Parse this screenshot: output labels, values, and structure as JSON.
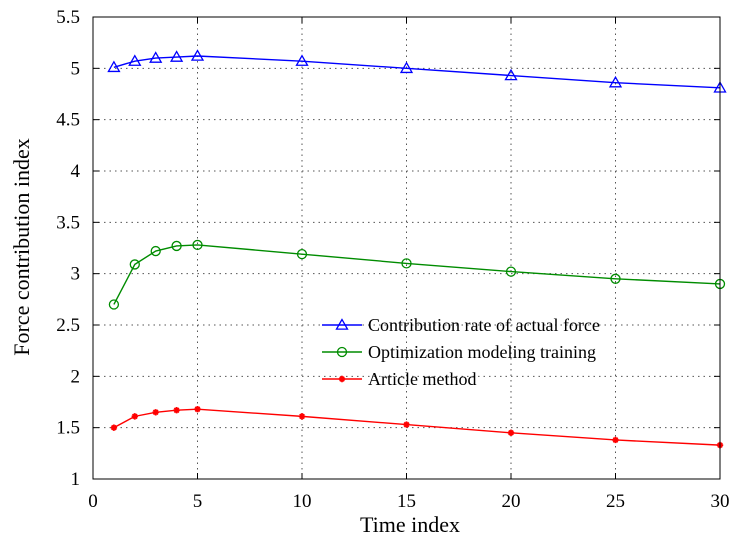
{
  "chart_data": {
    "type": "line",
    "title": "",
    "xlabel": "Time index",
    "ylabel": "Force contribution index",
    "xlim": [
      0,
      30
    ],
    "ylim": [
      1,
      5.5
    ],
    "xticks": [
      0,
      5,
      10,
      15,
      20,
      25,
      30
    ],
    "xtick_labels": [
      "0",
      "5",
      "10",
      "15",
      "20",
      "25",
      "30"
    ],
    "yticks": [
      1,
      1.5,
      2,
      2.5,
      3,
      3.5,
      4,
      4.5,
      5,
      5.5
    ],
    "ytick_labels": [
      "1",
      "1.5",
      "2",
      "2.5",
      "3",
      "3.5",
      "4",
      "4.5",
      "5",
      "5.5"
    ],
    "grid": "dotted",
    "legend_position": "lower-right",
    "x": [
      1,
      2,
      3,
      4,
      5,
      10,
      15,
      20,
      25,
      30
    ],
    "series": [
      {
        "name": "Contribution rate of actual force",
        "color": "#0000ff",
        "marker": "triangle",
        "values": [
          5.01,
          5.07,
          5.1,
          5.11,
          5.12,
          5.07,
          5.0,
          4.93,
          4.86,
          4.81
        ]
      },
      {
        "name": "Optimization modeling training",
        "color": "#008c00",
        "marker": "circle",
        "values": [
          2.7,
          3.09,
          3.22,
          3.27,
          3.28,
          3.19,
          3.1,
          3.02,
          2.95,
          2.9
        ]
      },
      {
        "name": "Article method",
        "color": "#ff0000",
        "marker": "star",
        "values": [
          1.5,
          1.61,
          1.65,
          1.67,
          1.68,
          1.61,
          1.53,
          1.45,
          1.38,
          1.33
        ]
      }
    ]
  }
}
